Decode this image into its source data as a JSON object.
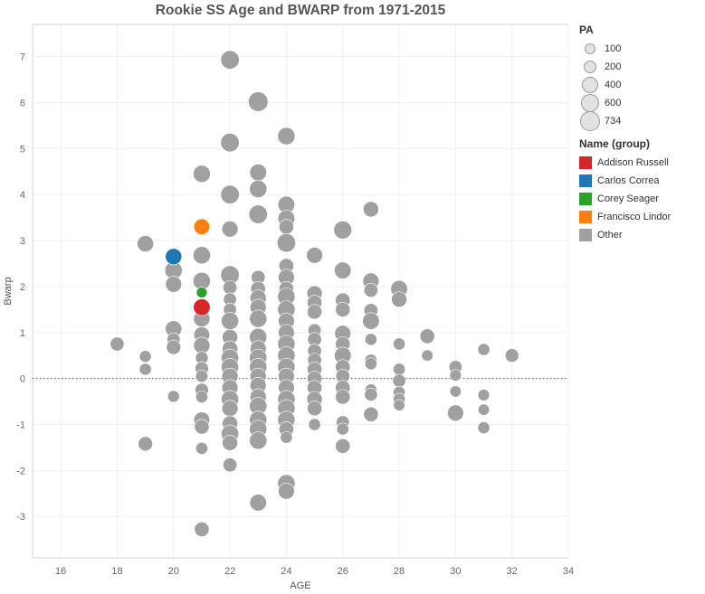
{
  "chart_data": {
    "type": "scatter",
    "title": "Rookie SS Age and BWARP from 1971-2015",
    "xlabel": "AGE",
    "ylabel": "Bwarp",
    "xlim": [
      15,
      34
    ],
    "ylim": [
      -3.9,
      7.7
    ],
    "xticks": [
      16,
      18,
      20,
      22,
      24,
      26,
      28,
      30,
      32,
      34
    ],
    "yticks": [
      -3,
      -2,
      -1,
      0,
      1,
      2,
      3,
      4,
      5,
      6,
      7
    ],
    "grid": true,
    "reference_line": 0,
    "size_legend": {
      "title": "PA",
      "entries": [
        {
          "label": "100",
          "value": 100
        },
        {
          "label": "200",
          "value": 200
        },
        {
          "label": "400",
          "value": 400
        },
        {
          "label": "600",
          "value": 600
        },
        {
          "label": "734",
          "value": 734
        }
      ]
    },
    "color_legend": {
      "title": "Name (group)",
      "entries": [
        {
          "label": "Addison Russell",
          "color": "#d62728"
        },
        {
          "label": "Carlos Correa",
          "color": "#1f77b4"
        },
        {
          "label": "Corey Seager",
          "color": "#2ca02c"
        },
        {
          "label": "Francisco Lindor",
          "color": "#ff7f0e"
        },
        {
          "label": "Other",
          "color": "#a0a0a0"
        }
      ]
    },
    "points": [
      {
        "x": 18,
        "y": 0.75,
        "pa": 250,
        "g": "Other"
      },
      {
        "x": 19,
        "y": 2.93,
        "pa": 420,
        "g": "Other"
      },
      {
        "x": 19,
        "y": 0.48,
        "pa": 140,
        "g": "Other"
      },
      {
        "x": 19,
        "y": 0.2,
        "pa": 150,
        "g": "Other"
      },
      {
        "x": 19,
        "y": -1.42,
        "pa": 280,
        "g": "Other"
      },
      {
        "x": 20,
        "y": 2.65,
        "pa": 420,
        "g": "Carlos Correa"
      },
      {
        "x": 20,
        "y": 2.35,
        "pa": 500,
        "g": "Other"
      },
      {
        "x": 20,
        "y": 2.05,
        "pa": 400,
        "g": "Other"
      },
      {
        "x": 20,
        "y": 1.08,
        "pa": 420,
        "g": "Other"
      },
      {
        "x": 20,
        "y": 0.85,
        "pa": 200,
        "g": "Other"
      },
      {
        "x": 20,
        "y": 0.68,
        "pa": 280,
        "g": "Other"
      },
      {
        "x": 20,
        "y": -0.39,
        "pa": 140,
        "g": "Other"
      },
      {
        "x": 21,
        "y": 4.45,
        "pa": 480,
        "g": "Other"
      },
      {
        "x": 21,
        "y": 3.3,
        "pa": 380,
        "g": "Francisco Lindor"
      },
      {
        "x": 21,
        "y": 2.68,
        "pa": 500,
        "g": "Other"
      },
      {
        "x": 21,
        "y": 2.12,
        "pa": 500,
        "g": "Other"
      },
      {
        "x": 21,
        "y": 1.87,
        "pa": 100,
        "g": "Corey Seager"
      },
      {
        "x": 21,
        "y": 1.55,
        "pa": 450,
        "g": "Addison Russell"
      },
      {
        "x": 21,
        "y": 1.3,
        "pa": 420,
        "g": "Other"
      },
      {
        "x": 21,
        "y": 0.95,
        "pa": 380,
        "g": "Other"
      },
      {
        "x": 21,
        "y": 0.72,
        "pa": 420,
        "g": "Other"
      },
      {
        "x": 21,
        "y": 0.45,
        "pa": 180,
        "g": "Other"
      },
      {
        "x": 21,
        "y": 0.22,
        "pa": 220,
        "g": "Other"
      },
      {
        "x": 21,
        "y": 0.05,
        "pa": 160,
        "g": "Other"
      },
      {
        "x": 21,
        "y": -0.25,
        "pa": 220,
        "g": "Other"
      },
      {
        "x": 21,
        "y": -0.4,
        "pa": 150,
        "g": "Other"
      },
      {
        "x": 21,
        "y": -0.9,
        "pa": 380,
        "g": "Other"
      },
      {
        "x": 21,
        "y": -1.05,
        "pa": 300,
        "g": "Other"
      },
      {
        "x": 21,
        "y": -1.52,
        "pa": 150,
        "g": "Other"
      },
      {
        "x": 21,
        "y": -3.28,
        "pa": 300,
        "g": "Other"
      },
      {
        "x": 22,
        "y": 6.93,
        "pa": 600,
        "g": "Other"
      },
      {
        "x": 22,
        "y": 5.13,
        "pa": 600,
        "g": "Other"
      },
      {
        "x": 22,
        "y": 4.0,
        "pa": 600,
        "g": "Other"
      },
      {
        "x": 22,
        "y": 3.25,
        "pa": 400,
        "g": "Other"
      },
      {
        "x": 22,
        "y": 2.25,
        "pa": 600,
        "g": "Other"
      },
      {
        "x": 22,
        "y": 1.98,
        "pa": 250,
        "g": "Other"
      },
      {
        "x": 22,
        "y": 1.72,
        "pa": 200,
        "g": "Other"
      },
      {
        "x": 22,
        "y": 1.5,
        "pa": 200,
        "g": "Other"
      },
      {
        "x": 22,
        "y": 1.25,
        "pa": 500,
        "g": "Other"
      },
      {
        "x": 22,
        "y": 0.9,
        "pa": 350,
        "g": "Other"
      },
      {
        "x": 22,
        "y": 0.65,
        "pa": 350,
        "g": "Other"
      },
      {
        "x": 22,
        "y": 0.45,
        "pa": 500,
        "g": "Other"
      },
      {
        "x": 22,
        "y": 0.25,
        "pa": 500,
        "g": "Other"
      },
      {
        "x": 22,
        "y": 0.05,
        "pa": 400,
        "g": "Other"
      },
      {
        "x": 22,
        "y": -0.2,
        "pa": 400,
        "g": "Other"
      },
      {
        "x": 22,
        "y": -0.45,
        "pa": 500,
        "g": "Other"
      },
      {
        "x": 22,
        "y": -0.65,
        "pa": 400,
        "g": "Other"
      },
      {
        "x": 22,
        "y": -0.98,
        "pa": 350,
        "g": "Other"
      },
      {
        "x": 22,
        "y": -1.2,
        "pa": 500,
        "g": "Other"
      },
      {
        "x": 22,
        "y": -1.4,
        "pa": 350,
        "g": "Other"
      },
      {
        "x": 22,
        "y": -1.88,
        "pa": 250,
        "g": "Other"
      },
      {
        "x": 23,
        "y": 6.02,
        "pa": 700,
        "g": "Other"
      },
      {
        "x": 23,
        "y": 4.48,
        "pa": 450,
        "g": "Other"
      },
      {
        "x": 23,
        "y": 4.12,
        "pa": 500,
        "g": "Other"
      },
      {
        "x": 23,
        "y": 3.57,
        "pa": 600,
        "g": "Other"
      },
      {
        "x": 23,
        "y": 2.2,
        "pa": 250,
        "g": "Other"
      },
      {
        "x": 23,
        "y": 1.95,
        "pa": 300,
        "g": "Other"
      },
      {
        "x": 23,
        "y": 1.75,
        "pa": 400,
        "g": "Other"
      },
      {
        "x": 23,
        "y": 1.55,
        "pa": 400,
        "g": "Other"
      },
      {
        "x": 23,
        "y": 1.3,
        "pa": 500,
        "g": "Other"
      },
      {
        "x": 23,
        "y": 0.9,
        "pa": 500,
        "g": "Other"
      },
      {
        "x": 23,
        "y": 0.65,
        "pa": 400,
        "g": "Other"
      },
      {
        "x": 23,
        "y": 0.45,
        "pa": 500,
        "g": "Other"
      },
      {
        "x": 23,
        "y": 0.25,
        "pa": 500,
        "g": "Other"
      },
      {
        "x": 23,
        "y": 0.05,
        "pa": 400,
        "g": "Other"
      },
      {
        "x": 23,
        "y": -0.15,
        "pa": 400,
        "g": "Other"
      },
      {
        "x": 23,
        "y": -0.4,
        "pa": 400,
        "g": "Other"
      },
      {
        "x": 23,
        "y": -0.6,
        "pa": 500,
        "g": "Other"
      },
      {
        "x": 23,
        "y": -0.9,
        "pa": 500,
        "g": "Other"
      },
      {
        "x": 23,
        "y": -1.1,
        "pa": 500,
        "g": "Other"
      },
      {
        "x": 23,
        "y": -1.35,
        "pa": 500,
        "g": "Other"
      },
      {
        "x": 23,
        "y": -2.7,
        "pa": 450,
        "g": "Other"
      },
      {
        "x": 24,
        "y": 5.27,
        "pa": 500,
        "g": "Other"
      },
      {
        "x": 24,
        "y": 3.78,
        "pa": 450,
        "g": "Other"
      },
      {
        "x": 24,
        "y": 3.48,
        "pa": 450,
        "g": "Other"
      },
      {
        "x": 24,
        "y": 3.3,
        "pa": 300,
        "g": "Other"
      },
      {
        "x": 24,
        "y": 2.95,
        "pa": 600,
        "g": "Other"
      },
      {
        "x": 24,
        "y": 2.45,
        "pa": 300,
        "g": "Other"
      },
      {
        "x": 24,
        "y": 2.2,
        "pa": 400,
        "g": "Other"
      },
      {
        "x": 24,
        "y": 1.95,
        "pa": 300,
        "g": "Other"
      },
      {
        "x": 24,
        "y": 1.78,
        "pa": 500,
        "g": "Other"
      },
      {
        "x": 24,
        "y": 1.5,
        "pa": 500,
        "g": "Other"
      },
      {
        "x": 24,
        "y": 1.25,
        "pa": 400,
        "g": "Other"
      },
      {
        "x": 24,
        "y": 1.0,
        "pa": 400,
        "g": "Other"
      },
      {
        "x": 24,
        "y": 0.75,
        "pa": 500,
        "g": "Other"
      },
      {
        "x": 24,
        "y": 0.5,
        "pa": 500,
        "g": "Other"
      },
      {
        "x": 24,
        "y": 0.25,
        "pa": 500,
        "g": "Other"
      },
      {
        "x": 24,
        "y": 0.05,
        "pa": 400,
        "g": "Other"
      },
      {
        "x": 24,
        "y": -0.2,
        "pa": 400,
        "g": "Other"
      },
      {
        "x": 24,
        "y": -0.45,
        "pa": 500,
        "g": "Other"
      },
      {
        "x": 24,
        "y": -0.65,
        "pa": 500,
        "g": "Other"
      },
      {
        "x": 24,
        "y": -0.9,
        "pa": 500,
        "g": "Other"
      },
      {
        "x": 24,
        "y": -1.1,
        "pa": 300,
        "g": "Other"
      },
      {
        "x": 24,
        "y": -1.28,
        "pa": 150,
        "g": "Other"
      },
      {
        "x": 24,
        "y": -2.28,
        "pa": 500,
        "g": "Other"
      },
      {
        "x": 24,
        "y": -2.45,
        "pa": 400,
        "g": "Other"
      },
      {
        "x": 25,
        "y": 2.68,
        "pa": 400,
        "g": "Other"
      },
      {
        "x": 25,
        "y": 1.85,
        "pa": 350,
        "g": "Other"
      },
      {
        "x": 25,
        "y": 1.65,
        "pa": 300,
        "g": "Other"
      },
      {
        "x": 25,
        "y": 1.45,
        "pa": 300,
        "g": "Other"
      },
      {
        "x": 25,
        "y": 1.05,
        "pa": 200,
        "g": "Other"
      },
      {
        "x": 25,
        "y": 0.85,
        "pa": 250,
        "g": "Other"
      },
      {
        "x": 25,
        "y": 0.6,
        "pa": 250,
        "g": "Other"
      },
      {
        "x": 25,
        "y": 0.4,
        "pa": 250,
        "g": "Other"
      },
      {
        "x": 25,
        "y": 0.2,
        "pa": 300,
        "g": "Other"
      },
      {
        "x": 25,
        "y": 0.0,
        "pa": 300,
        "g": "Other"
      },
      {
        "x": 25,
        "y": -0.2,
        "pa": 300,
        "g": "Other"
      },
      {
        "x": 25,
        "y": -0.45,
        "pa": 350,
        "g": "Other"
      },
      {
        "x": 25,
        "y": -0.65,
        "pa": 300,
        "g": "Other"
      },
      {
        "x": 25,
        "y": -1.0,
        "pa": 150,
        "g": "Other"
      },
      {
        "x": 26,
        "y": 3.23,
        "pa": 550,
        "g": "Other"
      },
      {
        "x": 26,
        "y": 2.35,
        "pa": 450,
        "g": "Other"
      },
      {
        "x": 26,
        "y": 1.7,
        "pa": 300,
        "g": "Other"
      },
      {
        "x": 26,
        "y": 1.5,
        "pa": 300,
        "g": "Other"
      },
      {
        "x": 26,
        "y": 0.98,
        "pa": 400,
        "g": "Other"
      },
      {
        "x": 26,
        "y": 0.75,
        "pa": 300,
        "g": "Other"
      },
      {
        "x": 26,
        "y": 0.5,
        "pa": 450,
        "g": "Other"
      },
      {
        "x": 26,
        "y": 0.25,
        "pa": 300,
        "g": "Other"
      },
      {
        "x": 26,
        "y": 0.05,
        "pa": 250,
        "g": "Other"
      },
      {
        "x": 26,
        "y": -0.2,
        "pa": 300,
        "g": "Other"
      },
      {
        "x": 26,
        "y": -0.4,
        "pa": 300,
        "g": "Other"
      },
      {
        "x": 26,
        "y": -0.95,
        "pa": 200,
        "g": "Other"
      },
      {
        "x": 26,
        "y": -1.1,
        "pa": 150,
        "g": "Other"
      },
      {
        "x": 26,
        "y": -1.47,
        "pa": 300,
        "g": "Other"
      },
      {
        "x": 27,
        "y": 3.68,
        "pa": 350,
        "g": "Other"
      },
      {
        "x": 27,
        "y": 2.12,
        "pa": 400,
        "g": "Other"
      },
      {
        "x": 27,
        "y": 1.92,
        "pa": 250,
        "g": "Other"
      },
      {
        "x": 27,
        "y": 1.48,
        "pa": 250,
        "g": "Other"
      },
      {
        "x": 27,
        "y": 1.25,
        "pa": 450,
        "g": "Other"
      },
      {
        "x": 27,
        "y": 0.85,
        "pa": 150,
        "g": "Other"
      },
      {
        "x": 27,
        "y": 0.4,
        "pa": 150,
        "g": "Other"
      },
      {
        "x": 27,
        "y": 0.32,
        "pa": 150,
        "g": "Other"
      },
      {
        "x": 27,
        "y": -0.25,
        "pa": 150,
        "g": "Other"
      },
      {
        "x": 27,
        "y": -0.35,
        "pa": 200,
        "g": "Other"
      },
      {
        "x": 27,
        "y": -0.78,
        "pa": 300,
        "g": "Other"
      },
      {
        "x": 28,
        "y": 1.95,
        "pa": 450,
        "g": "Other"
      },
      {
        "x": 28,
        "y": 1.72,
        "pa": 350,
        "g": "Other"
      },
      {
        "x": 28,
        "y": 0.75,
        "pa": 150,
        "g": "Other"
      },
      {
        "x": 28,
        "y": 0.2,
        "pa": 150,
        "g": "Other"
      },
      {
        "x": 28,
        "y": -0.05,
        "pa": 200,
        "g": "Other"
      },
      {
        "x": 28,
        "y": -0.3,
        "pa": 150,
        "g": "Other"
      },
      {
        "x": 28,
        "y": -0.45,
        "pa": 150,
        "g": "Other"
      },
      {
        "x": 28,
        "y": -0.58,
        "pa": 120,
        "g": "Other"
      },
      {
        "x": 29,
        "y": 0.92,
        "pa": 300,
        "g": "Other"
      },
      {
        "x": 29,
        "y": 0.5,
        "pa": 120,
        "g": "Other"
      },
      {
        "x": 30,
        "y": 0.25,
        "pa": 200,
        "g": "Other"
      },
      {
        "x": 30,
        "y": 0.07,
        "pa": 130,
        "g": "Other"
      },
      {
        "x": 30,
        "y": -0.28,
        "pa": 120,
        "g": "Other"
      },
      {
        "x": 30,
        "y": -0.75,
        "pa": 400,
        "g": "Other"
      },
      {
        "x": 31,
        "y": 0.63,
        "pa": 150,
        "g": "Other"
      },
      {
        "x": 31,
        "y": -0.36,
        "pa": 130,
        "g": "Other"
      },
      {
        "x": 31,
        "y": -0.68,
        "pa": 120,
        "g": "Other"
      },
      {
        "x": 31,
        "y": -1.07,
        "pa": 150,
        "g": "Other"
      },
      {
        "x": 32,
        "y": 0.5,
        "pa": 230,
        "g": "Other"
      }
    ]
  }
}
